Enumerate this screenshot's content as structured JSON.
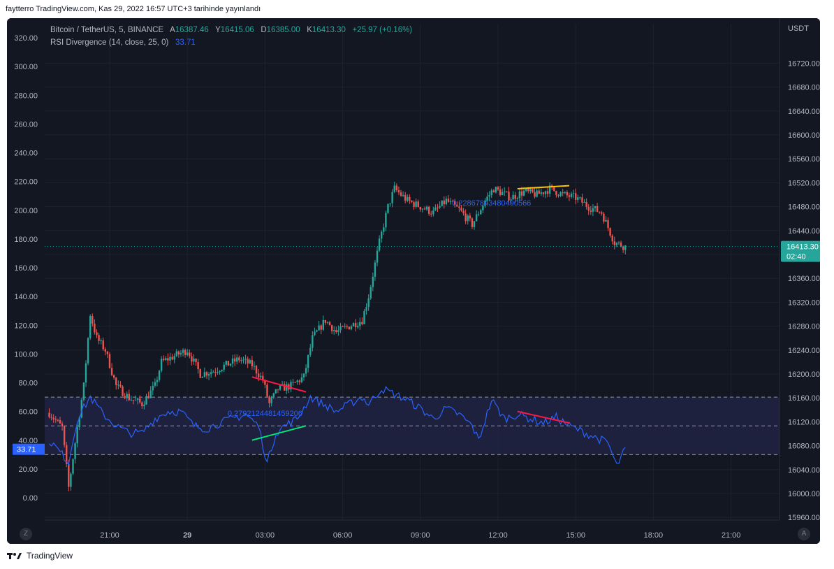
{
  "caption": "faytterro TradingView.com, Kas 29, 2022 16:57 UTC+3 tarihinde yayınlandı",
  "footer": {
    "logo_text": "TradingView"
  },
  "legend": {
    "symbol": "Bitcoin / TetherUS, 5, BINANCE",
    "o_label": "A",
    "o_value": "16387.46",
    "h_label": "Y",
    "h_value": "16415.06",
    "l_label": "D",
    "l_value": "16385.00",
    "c_label": "K",
    "c_value": "16413.30",
    "change": "+25.97 (+0.16%)",
    "indicator": "RSI Divergence (14, close, 25, 0)",
    "indicator_value": "33.71"
  },
  "buttons": {
    "left": "Z",
    "right": "A"
  },
  "colors": {
    "background": "#131722",
    "up": "#26a69a",
    "down": "#ef5350",
    "rsi_line": "#2962ff",
    "band": "#1f2240",
    "grid": "#1e222d",
    "div_red": "#ff1744",
    "div_green": "#00e676",
    "div_yellow": "#ffc400"
  },
  "chart_data": {
    "type": "candlestick",
    "price_axis": {
      "label": "USDT",
      "ticks": [
        "16720.00",
        "16680.00",
        "16640.00",
        "16600.00",
        "16560.00",
        "16520.00",
        "16480.00",
        "16440.00",
        "16400.00",
        "16360.00",
        "16320.00",
        "16280.00",
        "16240.00",
        "16200.00",
        "16160.00",
        "16120.00",
        "16080.00",
        "16040.00",
        "16000.00",
        "15960.00"
      ],
      "range": [
        15960,
        16720
      ],
      "last_price": "16413.30",
      "countdown": "02:40"
    },
    "rsi_axis": {
      "ticks": [
        "320.00",
        "300.00",
        "280.00",
        "260.00",
        "240.00",
        "220.00",
        "200.00",
        "180.00",
        "160.00",
        "140.00",
        "120.00",
        "100.00",
        "80.00",
        "60.00",
        "40.00",
        "20.00",
        "0.00"
      ],
      "range": [
        0,
        320
      ],
      "current": "33.71",
      "band_levels": [
        70,
        50,
        30
      ]
    },
    "time_axis": {
      "ticks": [
        "21:00",
        "29",
        "03:00",
        "06:00",
        "09:00",
        "12:00",
        "15:00",
        "18:00",
        "21:00"
      ]
    },
    "price_keypoints": [
      {
        "x": "28 18:40",
        "price": 16135
      },
      {
        "x": "28 19:10",
        "price": 16110
      },
      {
        "x": "28 19:25",
        "price": 16010
      },
      {
        "x": "28 19:45",
        "price": 16110
      },
      {
        "x": "28 20:00",
        "price": 16180
      },
      {
        "x": "28 20:15",
        "price": 16300
      },
      {
        "x": "28 20:30",
        "price": 16260
      },
      {
        "x": "28 20:50",
        "price": 16240
      },
      {
        "x": "28 21:15",
        "price": 16180
      },
      {
        "x": "28 21:45",
        "price": 16160
      },
      {
        "x": "28 22:15",
        "price": 16150
      },
      {
        "x": "28 22:45",
        "price": 16180
      },
      {
        "x": "28 23:00",
        "price": 16220
      },
      {
        "x": "28 23:30",
        "price": 16230
      },
      {
        "x": "29 00:00",
        "price": 16240
      },
      {
        "x": "29 00:30",
        "price": 16200
      },
      {
        "x": "29 01:00",
        "price": 16205
      },
      {
        "x": "29 01:30",
        "price": 16215
      },
      {
        "x": "29 02:00",
        "price": 16225
      },
      {
        "x": "29 02:30",
        "price": 16215
      },
      {
        "x": "29 02:55",
        "price": 16190
      },
      {
        "x": "29 03:10",
        "price": 16150
      },
      {
        "x": "29 03:30",
        "price": 16175
      },
      {
        "x": "29 04:00",
        "price": 16180
      },
      {
        "x": "29 04:30",
        "price": 16195
      },
      {
        "x": "29 04:50",
        "price": 16260
      },
      {
        "x": "29 05:20",
        "price": 16290
      },
      {
        "x": "29 05:45",
        "price": 16270
      },
      {
        "x": "29 06:15",
        "price": 16280
      },
      {
        "x": "29 06:45",
        "price": 16290
      },
      {
        "x": "29 07:00",
        "price": 16330
      },
      {
        "x": "29 07:25",
        "price": 16420
      },
      {
        "x": "29 07:45",
        "price": 16480
      },
      {
        "x": "29 08:00",
        "price": 16510
      },
      {
        "x": "29 08:30",
        "price": 16490
      },
      {
        "x": "29 09:00",
        "price": 16480
      },
      {
        "x": "29 09:30",
        "price": 16470
      },
      {
        "x": "29 10:00",
        "price": 16490
      },
      {
        "x": "29 10:30",
        "price": 16475
      },
      {
        "x": "29 11:00",
        "price": 16450
      },
      {
        "x": "29 11:30",
        "price": 16490
      },
      {
        "x": "29 11:50",
        "price": 16510
      },
      {
        "x": "29 12:30",
        "price": 16495
      },
      {
        "x": "29 13:00",
        "price": 16505
      },
      {
        "x": "29 13:30",
        "price": 16500
      },
      {
        "x": "29 14:00",
        "price": 16510
      },
      {
        "x": "29 14:30",
        "price": 16500
      },
      {
        "x": "29 15:00",
        "price": 16495
      },
      {
        "x": "29 15:30",
        "price": 16480
      },
      {
        "x": "29 16:00",
        "price": 16470
      },
      {
        "x": "29 16:30",
        "price": 16420
      },
      {
        "x": "29 16:55",
        "price": 16413
      }
    ],
    "rsi_keypoints": [
      {
        "x": "28 18:40",
        "rsi": 40
      },
      {
        "x": "28 19:25",
        "rsi": 25
      },
      {
        "x": "28 19:45",
        "rsi": 55
      },
      {
        "x": "28 20:15",
        "rsi": 70
      },
      {
        "x": "28 20:45",
        "rsi": 58
      },
      {
        "x": "28 21:15",
        "rsi": 50
      },
      {
        "x": "28 21:45",
        "rsi": 45
      },
      {
        "x": "28 22:15",
        "rsi": 45
      },
      {
        "x": "28 22:45",
        "rsi": 55
      },
      {
        "x": "28 23:15",
        "rsi": 60
      },
      {
        "x": "28 23:45",
        "rsi": 60
      },
      {
        "x": "29 00:15",
        "rsi": 50
      },
      {
        "x": "29 00:45",
        "rsi": 48
      },
      {
        "x": "29 01:15",
        "rsi": 52
      },
      {
        "x": "29 01:45",
        "rsi": 55
      },
      {
        "x": "29 02:15",
        "rsi": 58
      },
      {
        "x": "29 02:45",
        "rsi": 50
      },
      {
        "x": "29 03:05",
        "rsi": 24
      },
      {
        "x": "29 03:25",
        "rsi": 45
      },
      {
        "x": "29 03:45",
        "rsi": 50
      },
      {
        "x": "29 04:15",
        "rsi": 55
      },
      {
        "x": "29 04:45",
        "rsi": 70
      },
      {
        "x": "29 05:15",
        "rsi": 65
      },
      {
        "x": "29 05:45",
        "rsi": 60
      },
      {
        "x": "29 06:15",
        "rsi": 65
      },
      {
        "x": "29 06:45",
        "rsi": 70
      },
      {
        "x": "29 07:00",
        "rsi": 65
      },
      {
        "x": "29 07:30",
        "rsi": 76
      },
      {
        "x": "29 08:00",
        "rsi": 72
      },
      {
        "x": "29 08:30",
        "rsi": 68
      },
      {
        "x": "29 09:00",
        "rsi": 62
      },
      {
        "x": "29 09:30",
        "rsi": 55
      },
      {
        "x": "29 10:00",
        "rsi": 62
      },
      {
        "x": "29 10:30",
        "rsi": 58
      },
      {
        "x": "29 11:00",
        "rsi": 50
      },
      {
        "x": "29 11:15",
        "rsi": 40
      },
      {
        "x": "29 11:45",
        "rsi": 68
      },
      {
        "x": "29 12:15",
        "rsi": 55
      },
      {
        "x": "29 12:45",
        "rsi": 58
      },
      {
        "x": "29 13:15",
        "rsi": 55
      },
      {
        "x": "29 13:45",
        "rsi": 52
      },
      {
        "x": "29 14:15",
        "rsi": 56
      },
      {
        "x": "29 14:45",
        "rsi": 50
      },
      {
        "x": "29 15:15",
        "rsi": 46
      },
      {
        "x": "29 15:45",
        "rsi": 42
      },
      {
        "x": "29 16:15",
        "rsi": 38
      },
      {
        "x": "29 16:35",
        "rsi": 22
      },
      {
        "x": "29 16:55",
        "rsi": 33.71
      }
    ],
    "annotations": [
      {
        "text": "0.2792124481459206",
        "at": {
          "x": "29 03:00",
          "rsi": 57
        }
      },
      {
        "text": "0.22867843480490566",
        "at": {
          "x": "29 11:45",
          "price": 16482
        }
      }
    ],
    "divergence_lines": [
      {
        "pane": "price",
        "color": "red",
        "from": {
          "x": "29 02:30",
          "price": 16195
        },
        "to": {
          "x": "29 04:35",
          "price": 16170
        }
      },
      {
        "pane": "rsi",
        "color": "green",
        "from": {
          "x": "29 02:30",
          "rsi": 40
        },
        "to": {
          "x": "29 04:35",
          "rsi": 50
        }
      },
      {
        "pane": "price",
        "color": "yellow",
        "from": {
          "x": "29 12:45",
          "price": 16510
        },
        "to": {
          "x": "29 14:45",
          "price": 16515
        }
      },
      {
        "pane": "rsi",
        "color": "red",
        "from": {
          "x": "29 12:45",
          "rsi": 60
        },
        "to": {
          "x": "29 14:45",
          "rsi": 52
        }
      }
    ]
  }
}
